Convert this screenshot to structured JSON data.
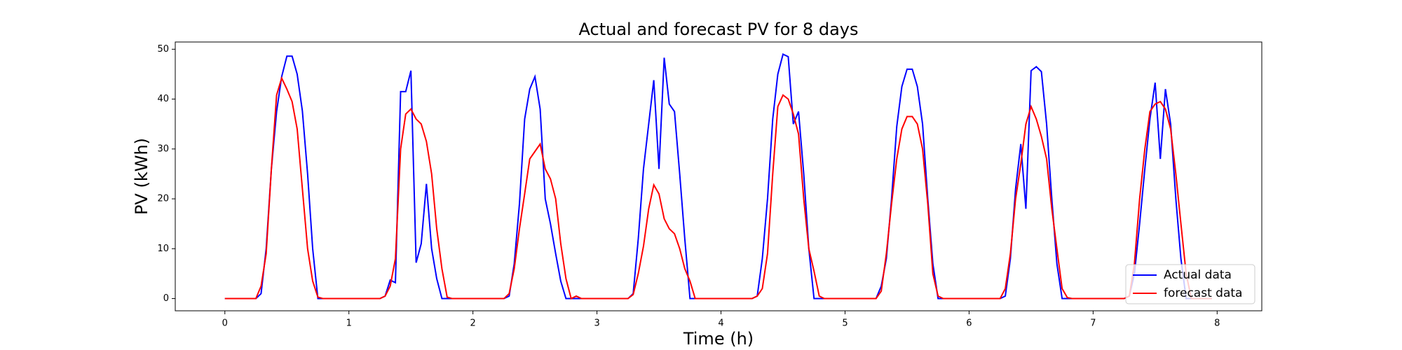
{
  "chart_data": {
    "type": "line",
    "title": "Actual and forecast PV for 8 days",
    "xlabel": "Time (h)",
    "ylabel": "PV (kWh)",
    "x": [
      0,
      0.042,
      0.083,
      0.125,
      0.167,
      0.208,
      0.25,
      0.292,
      0.333,
      0.375,
      0.417,
      0.458,
      0.5,
      0.542,
      0.583,
      0.625,
      0.667,
      0.708,
      0.75,
      0.792,
      0.833,
      0.875,
      0.917,
      0.958,
      1,
      1.042,
      1.083,
      1.125,
      1.167,
      1.208,
      1.25,
      1.292,
      1.333,
      1.375,
      1.417,
      1.458,
      1.5,
      1.542,
      1.583,
      1.625,
      1.667,
      1.708,
      1.75,
      1.792,
      1.833,
      1.875,
      1.917,
      1.958,
      2,
      2.042,
      2.083,
      2.125,
      2.167,
      2.208,
      2.25,
      2.292,
      2.333,
      2.375,
      2.417,
      2.458,
      2.5,
      2.542,
      2.583,
      2.625,
      2.667,
      2.708,
      2.75,
      2.792,
      2.833,
      2.875,
      2.917,
      2.958,
      3,
      3.042,
      3.083,
      3.125,
      3.167,
      3.208,
      3.25,
      3.292,
      3.333,
      3.375,
      3.417,
      3.458,
      3.5,
      3.542,
      3.583,
      3.625,
      3.667,
      3.708,
      3.75,
      3.792,
      3.833,
      3.875,
      3.917,
      3.958,
      4,
      4.042,
      4.083,
      4.125,
      4.167,
      4.208,
      4.25,
      4.292,
      4.333,
      4.375,
      4.417,
      4.458,
      4.5,
      4.542,
      4.583,
      4.625,
      4.667,
      4.708,
      4.75,
      4.792,
      4.833,
      4.875,
      4.917,
      4.958,
      5,
      5.042,
      5.083,
      5.125,
      5.167,
      5.208,
      5.25,
      5.292,
      5.333,
      5.375,
      5.417,
      5.458,
      5.5,
      5.542,
      5.583,
      5.625,
      5.667,
      5.708,
      5.75,
      5.792,
      5.833,
      5.875,
      5.917,
      5.958,
      6,
      6.042,
      6.083,
      6.125,
      6.167,
      6.208,
      6.25,
      6.292,
      6.333,
      6.375,
      6.417,
      6.458,
      6.5,
      6.542,
      6.583,
      6.625,
      6.667,
      6.708,
      6.75,
      6.792,
      6.833,
      6.875,
      6.917,
      6.958,
      7,
      7.042,
      7.083,
      7.125,
      7.167,
      7.208,
      7.25,
      7.292,
      7.333,
      7.375,
      7.417,
      7.458,
      7.5,
      7.542,
      7.583,
      7.625,
      7.667,
      7.708,
      7.75,
      7.792,
      7.833,
      7.875,
      7.917,
      7.958
    ],
    "series": [
      {
        "name": "Actual data",
        "color": "#0000ff",
        "values": [
          0,
          0,
          0,
          0,
          0,
          0,
          0,
          1,
          10,
          26,
          37.5,
          44.5,
          48.6,
          48.6,
          45,
          37.6,
          25,
          10,
          0,
          0,
          0,
          0,
          0,
          0,
          0,
          0,
          0,
          0,
          0,
          0,
          0,
          0.5,
          3.7,
          3.2,
          41.5,
          41.5,
          45.7,
          7.2,
          11,
          23,
          10,
          4,
          0,
          0,
          0,
          0,
          0,
          0,
          0,
          0,
          0,
          0,
          0,
          0,
          0,
          0.5,
          7,
          19,
          36,
          42,
          44.5,
          38,
          20,
          15,
          9,
          3.5,
          0,
          0,
          0,
          0,
          0,
          0,
          0,
          0,
          0,
          0,
          0,
          0,
          0,
          1,
          12,
          26,
          35,
          43.8,
          26,
          48.3,
          39,
          37.5,
          25,
          12,
          0,
          0,
          0,
          0,
          0,
          0,
          0,
          0,
          0,
          0,
          0,
          0,
          0,
          0.5,
          8,
          20,
          36,
          45,
          49,
          48.5,
          35,
          37.5,
          25,
          10,
          0,
          0,
          0,
          0,
          0,
          0,
          0,
          0,
          0,
          0,
          0,
          0,
          0,
          2.5,
          8,
          20,
          34.5,
          42.5,
          46,
          46,
          42.5,
          35,
          20,
          7,
          0,
          0,
          0,
          0,
          0,
          0,
          0,
          0,
          0,
          0,
          0,
          0,
          0,
          0.5,
          8,
          22,
          31,
          18,
          45.7,
          46.5,
          45.5,
          35,
          20,
          7,
          0,
          0,
          0,
          0,
          0,
          0,
          0,
          0,
          0,
          0,
          0,
          0,
          0,
          0.5,
          5,
          15,
          26,
          36,
          43.3,
          28,
          42,
          35,
          20,
          8,
          0,
          0,
          0,
          0,
          0,
          0
        ]
      },
      {
        "name": "forecast data",
        "color": "#ff0000",
        "values": [
          0,
          0,
          0,
          0,
          0,
          0,
          0,
          2.5,
          9,
          26,
          40.8,
          44.2,
          42,
          39.5,
          34,
          22,
          10,
          3.5,
          0.3,
          0,
          0,
          0,
          0,
          0,
          0,
          0,
          0,
          0,
          0,
          0,
          0,
          0.5,
          2.5,
          8,
          30,
          37,
          38,
          36,
          35,
          31.5,
          25,
          14,
          6,
          0.3,
          0,
          0,
          0,
          0,
          0,
          0,
          0,
          0,
          0,
          0,
          0,
          1,
          6,
          14,
          21,
          28,
          29.5,
          31,
          26,
          24,
          20,
          11,
          4,
          0,
          0.5,
          0,
          0,
          0,
          0,
          0,
          0,
          0,
          0,
          0,
          0,
          0.8,
          5,
          10.5,
          18,
          22.8,
          21,
          16,
          14,
          13,
          10,
          6,
          3.5,
          0,
          0,
          0,
          0,
          0,
          0,
          0,
          0,
          0,
          0,
          0,
          0,
          0.5,
          2,
          9,
          25,
          38.5,
          40.8,
          40,
          37,
          33,
          20,
          10,
          5.5,
          0.5,
          0,
          0,
          0,
          0,
          0,
          0,
          0,
          0,
          0,
          0,
          0,
          1.5,
          9,
          19,
          28,
          34,
          36.5,
          36.5,
          35,
          30,
          19,
          5,
          0.5,
          0,
          0,
          0,
          0,
          0,
          0,
          0,
          0,
          0,
          0,
          0,
          0,
          2,
          9,
          20,
          27,
          35,
          38.5,
          36,
          32.5,
          28,
          18,
          10,
          2,
          0.2,
          0,
          0,
          0,
          0,
          0,
          0,
          0,
          0,
          0,
          0,
          0,
          0.5,
          7,
          20,
          30,
          37.5,
          39,
          39.5,
          38,
          34,
          25,
          15,
          5,
          0,
          0,
          0,
          0,
          0
        ]
      }
    ],
    "xlim": [
      -0.4,
      8.36
    ],
    "xticks": [
      0,
      1,
      2,
      3,
      4,
      5,
      6,
      7,
      8
    ],
    "ylim": [
      -2.45,
      51.45
    ],
    "yticks": [
      0,
      10,
      20,
      30,
      40,
      50
    ],
    "legend": "lower right"
  }
}
